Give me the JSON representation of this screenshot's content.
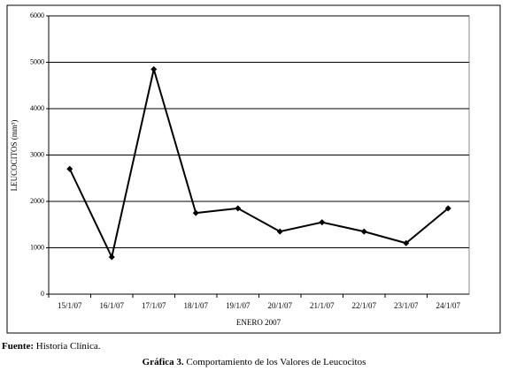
{
  "chart_data": {
    "type": "line",
    "categories": [
      "15/1/07",
      "16/1/07",
      "17/1/07",
      "18/1/07",
      "19/1/07",
      "20/1/07",
      "21/1/07",
      "22/1/07",
      "23/1/07",
      "24/1/07"
    ],
    "series": [
      {
        "name": "Leucocitos",
        "color": "#000000",
        "values": [
          2700,
          800,
          4850,
          1750,
          1850,
          1350,
          1550,
          1350,
          1100,
          1850
        ]
      }
    ],
    "ylim": [
      0,
      6000
    ],
    "yticks": [
      0,
      1000,
      2000,
      3000,
      4000,
      5000,
      6000
    ],
    "grid": true,
    "ylabel": "LEUCOCITOS (mm³)",
    "xlabel": "ENERO 2007"
  },
  "footer": {
    "source_label": "Fuente:",
    "source_text": "Historia Clínica.",
    "caption_label": "Gráfica 3.",
    "caption_text": "Comportamiento de los Valores de Leucocitos"
  }
}
